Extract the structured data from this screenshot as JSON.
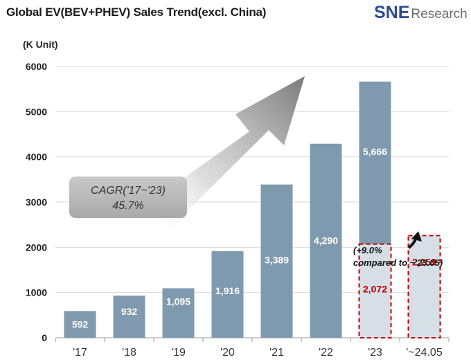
{
  "header": {
    "title": "Global EV(BEV+PHEV)  Sales Trend(excl. China)",
    "logo_mark": "SNE",
    "logo_word": "Research"
  },
  "chart_data": {
    "type": "bar",
    "title": "Global EV(BEV+PHEV)  Sales Trend(excl. China)",
    "ylabel": "(K Unit)",
    "ylim": [
      0,
      6000
    ],
    "yticks": [
      0,
      1000,
      2000,
      3000,
      4000,
      5000,
      6000
    ],
    "grid": true,
    "categories": [
      "'17",
      "'18",
      "'19",
      "'20",
      "'21",
      "'22",
      "'23",
      "'~24.05"
    ],
    "values": [
      592,
      932,
      1095,
      1916,
      3389,
      4290,
      5666,
      2259
    ],
    "value_labels": [
      "592",
      "932",
      "1,095",
      "1,916",
      "3,389",
      "4,290",
      "5,666",
      "2,259"
    ],
    "highlight": {
      "category": "'23",
      "value": 2072,
      "label": "2,072"
    },
    "annotations": {
      "cagr_line1": "CAGR('17~'23)",
      "cagr_line2": "45.7%",
      "growth_line1": "(+9.0%",
      "growth_line2": "compared to ~'23.05)"
    },
    "colors": {
      "bar": "#7f9aae",
      "highlight_fill": "#d6dfe6",
      "highlight_border": "#c00000",
      "red_label": "#c00000",
      "grid": "#d9d9d9"
    }
  }
}
